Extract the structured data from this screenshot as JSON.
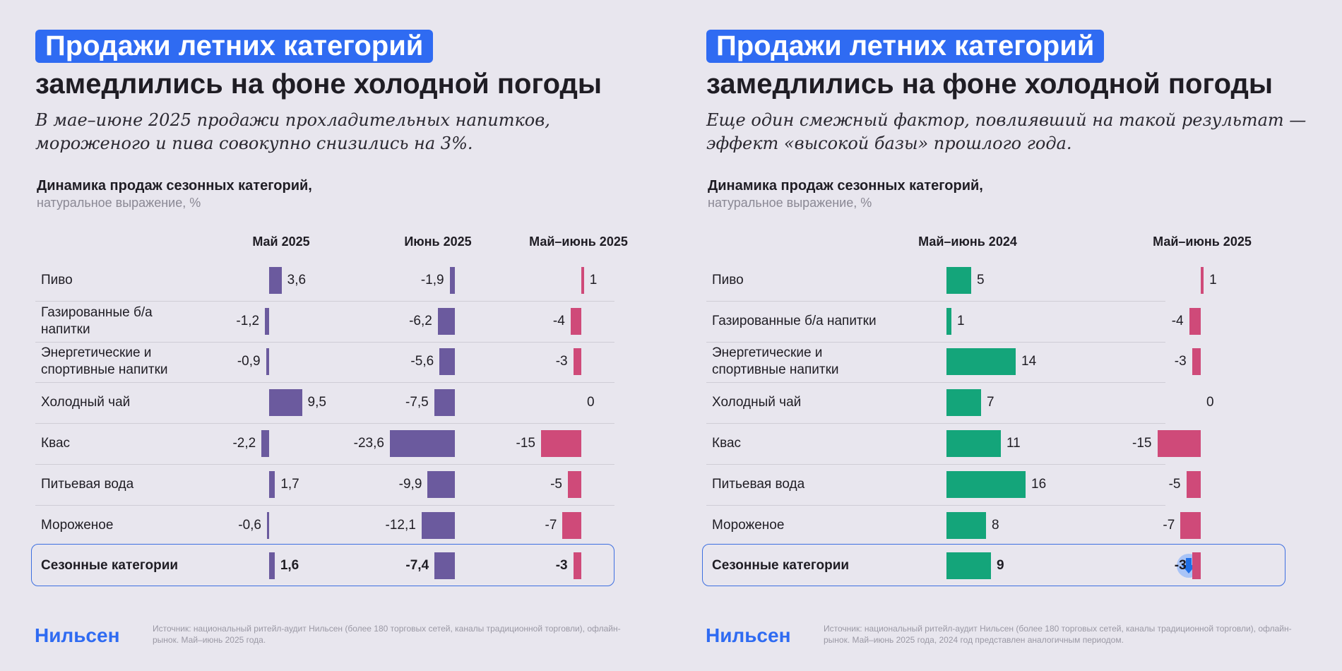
{
  "colors": {
    "accent": "#2f6bf2",
    "purple": "#6b5a9e",
    "pink": "#cf4a79",
    "green": "#14a57a"
  },
  "left": {
    "title_line1": "Продажи летних категорий",
    "title_line2": "замедлились на фоне холодной погоды",
    "subtitle": "В мае–июне 2025 продажи прохладительных напитков, мороженого и пива совокупно снизились на 3%.",
    "chart_title": "Динамика продаж сезонных категорий,",
    "chart_subtitle": "натуральное выражение, %",
    "logo": "Нильсен",
    "source": "Источник: национальный ритейл-аудит Нильсен (более 180 торговых сетей, каналы традиционной торговли), офлайн-рынок. Май–июнь 2025 года."
  },
  "right": {
    "title_line1": "Продажи летних категорий",
    "title_line2": "замедлились на фоне холодной погоды",
    "subtitle": "Еще один смежный фактор, повлиявший на такой результат — эффект «высокой базы» прошлого года.",
    "chart_title": "Динамика продаж сезонных категорий,",
    "chart_subtitle": "натуральное выражение, %",
    "logo": "Нильсен",
    "source": "Источник: национальный ритейл-аудит Нильсен (более 180 торговых сетей, каналы традиционной торговли), офлайн-рынок. Май–июнь 2025 года, 2024 год представлен аналогичным периодом.",
    "total_icon": "arrow-down-icon"
  },
  "chart_data": [
    {
      "type": "bar",
      "title": "Динамика продаж сезонных категорий,",
      "subtitle": "натуральное выражение, %",
      "categories": [
        "Пиво",
        "Газированные б/а напитки",
        "Энергетические и спортивные напитки",
        "Холодный чай",
        "Квас",
        "Питьевая вода",
        "Мороженое",
        "Сезонные категории"
      ],
      "series": [
        {
          "name": "Май 2025",
          "values": [
            3.6,
            -1.2,
            -0.9,
            9.5,
            -2.2,
            1.7,
            -0.6,
            1.6
          ],
          "labels": [
            "3,6",
            "-1,2",
            "-0,9",
            "9,5",
            "-2,2",
            "1,7",
            "-0,6",
            "1,6"
          ]
        },
        {
          "name": "Июнь 2025",
          "values": [
            -1.9,
            -6.2,
            -5.6,
            -7.5,
            -23.6,
            -9.9,
            -12.1,
            -7.4
          ],
          "labels": [
            "-1,9",
            "-6,2",
            "-5,6",
            "-7,5",
            "-23,6",
            "-9,9",
            "-12,1",
            "-7,4"
          ]
        },
        {
          "name": "Май–июнь 2025",
          "values": [
            1,
            -4,
            -3,
            0,
            -15,
            -5,
            -7,
            -3
          ],
          "labels": [
            "1",
            "-4",
            "-3",
            "0",
            "-15",
            "-5",
            "-7",
            "-3"
          ]
        }
      ]
    },
    {
      "type": "bar",
      "title": "Динамика продаж сезонных категорий,",
      "subtitle": "натуральное выражение, %",
      "categories": [
        "Пиво",
        "Газированные б/а напитки",
        "Энергетические и спортивные напитки",
        "Холодный чай",
        "Квас",
        "Питьевая вода",
        "Мороженое",
        "Сезонные категории"
      ],
      "series": [
        {
          "name": "Май–июнь 2024",
          "values": [
            5,
            1,
            14,
            7,
            11,
            16,
            8,
            9
          ],
          "labels": [
            "5",
            "1",
            "14",
            "7",
            "11",
            "16",
            "8",
            "9"
          ]
        },
        {
          "name": "Май–июнь 2025",
          "values": [
            1,
            -4,
            -3,
            0,
            -15,
            -5,
            -7,
            -3
          ],
          "labels": [
            "1",
            "-4",
            "-3",
            "0",
            "-15",
            "-5",
            "-7",
            "-3"
          ]
        }
      ]
    }
  ]
}
